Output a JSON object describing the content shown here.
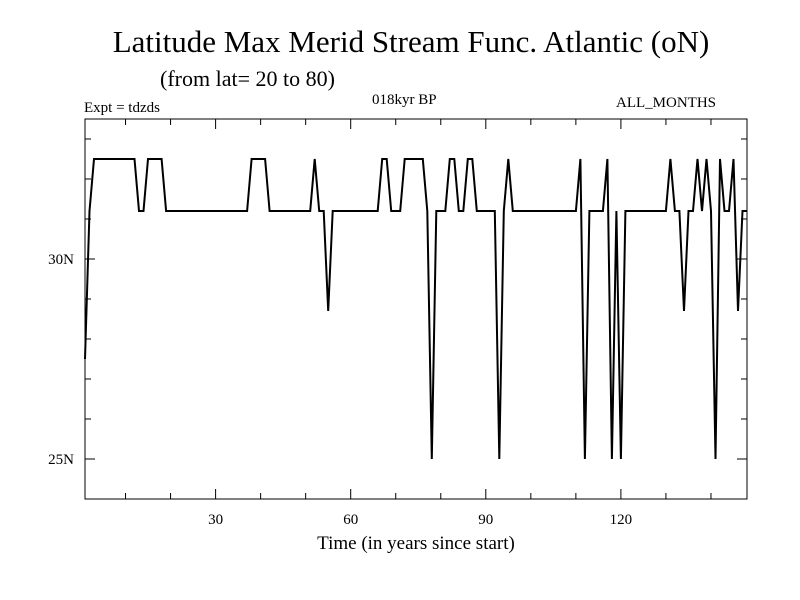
{
  "chart_data": {
    "type": "line",
    "title": "Latitude Max Merid Stream Func. Atlantic (oN)",
    "subtitle": "(from lat= 20 to 80)",
    "annotations": {
      "experiment": "Expt = tdzds",
      "period": "018kyr BP",
      "months": "ALL_MONTHS"
    },
    "xlabel": "Time (in years since start)",
    "ylabel": "",
    "xlim": [
      1,
      148
    ],
    "ylim": [
      24,
      33.5
    ],
    "x_ticks": [
      {
        "value": 30,
        "label": "30"
      },
      {
        "value": 60,
        "label": "60"
      },
      {
        "value": 90,
        "label": "90"
      },
      {
        "value": 120,
        "label": "120"
      }
    ],
    "y_ticks": [
      {
        "value": 25,
        "label": "25N"
      },
      {
        "value": 30,
        "label": "30N"
      }
    ],
    "grid": false,
    "series": [
      {
        "color": "#000000",
        "points": [
          [
            1,
            27.5
          ],
          [
            2,
            31.2
          ],
          [
            3,
            32.5
          ],
          [
            12,
            32.5
          ],
          [
            13,
            31.2
          ],
          [
            14,
            31.2
          ],
          [
            15,
            32.5
          ],
          [
            18,
            32.5
          ],
          [
            19,
            31.2
          ],
          [
            37,
            31.2
          ],
          [
            38,
            32.5
          ],
          [
            41,
            32.5
          ],
          [
            42,
            31.2
          ],
          [
            51,
            31.2
          ],
          [
            52,
            32.5
          ],
          [
            53,
            31.2
          ],
          [
            54,
            31.2
          ],
          [
            55,
            28.7
          ],
          [
            56,
            31.2
          ],
          [
            66,
            31.2
          ],
          [
            67,
            32.5
          ],
          [
            68,
            32.5
          ],
          [
            69,
            31.2
          ],
          [
            71,
            31.2
          ],
          [
            72,
            32.5
          ],
          [
            76,
            32.5
          ],
          [
            77,
            31.2
          ],
          [
            78,
            25.0
          ],
          [
            79,
            31.2
          ],
          [
            81,
            31.2
          ],
          [
            82,
            32.5
          ],
          [
            83,
            32.5
          ],
          [
            84,
            31.2
          ],
          [
            85,
            31.2
          ],
          [
            86,
            32.5
          ],
          [
            87,
            32.5
          ],
          [
            88,
            31.2
          ],
          [
            92,
            31.2
          ],
          [
            93,
            25.0
          ],
          [
            94,
            31.2
          ],
          [
            95,
            32.5
          ],
          [
            96,
            31.2
          ],
          [
            110,
            31.2
          ],
          [
            111,
            32.5
          ],
          [
            112,
            25.0
          ],
          [
            113,
            31.2
          ],
          [
            116,
            31.2
          ],
          [
            117,
            32.5
          ],
          [
            118,
            25.0
          ],
          [
            119,
            31.2
          ],
          [
            120,
            25.0
          ],
          [
            121,
            31.2
          ],
          [
            130,
            31.2
          ],
          [
            131,
            32.5
          ],
          [
            132,
            31.2
          ],
          [
            133,
            31.2
          ],
          [
            134,
            28.7
          ],
          [
            135,
            31.2
          ],
          [
            136,
            31.2
          ],
          [
            137,
            32.5
          ],
          [
            138,
            31.2
          ],
          [
            139,
            32.5
          ],
          [
            140,
            31.2
          ],
          [
            141,
            25.0
          ],
          [
            142,
            32.5
          ],
          [
            143,
            31.2
          ],
          [
            144,
            31.2
          ],
          [
            145,
            32.5
          ],
          [
            146,
            28.7
          ],
          [
            147,
            31.2
          ],
          [
            148,
            31.2
          ]
        ]
      }
    ]
  }
}
